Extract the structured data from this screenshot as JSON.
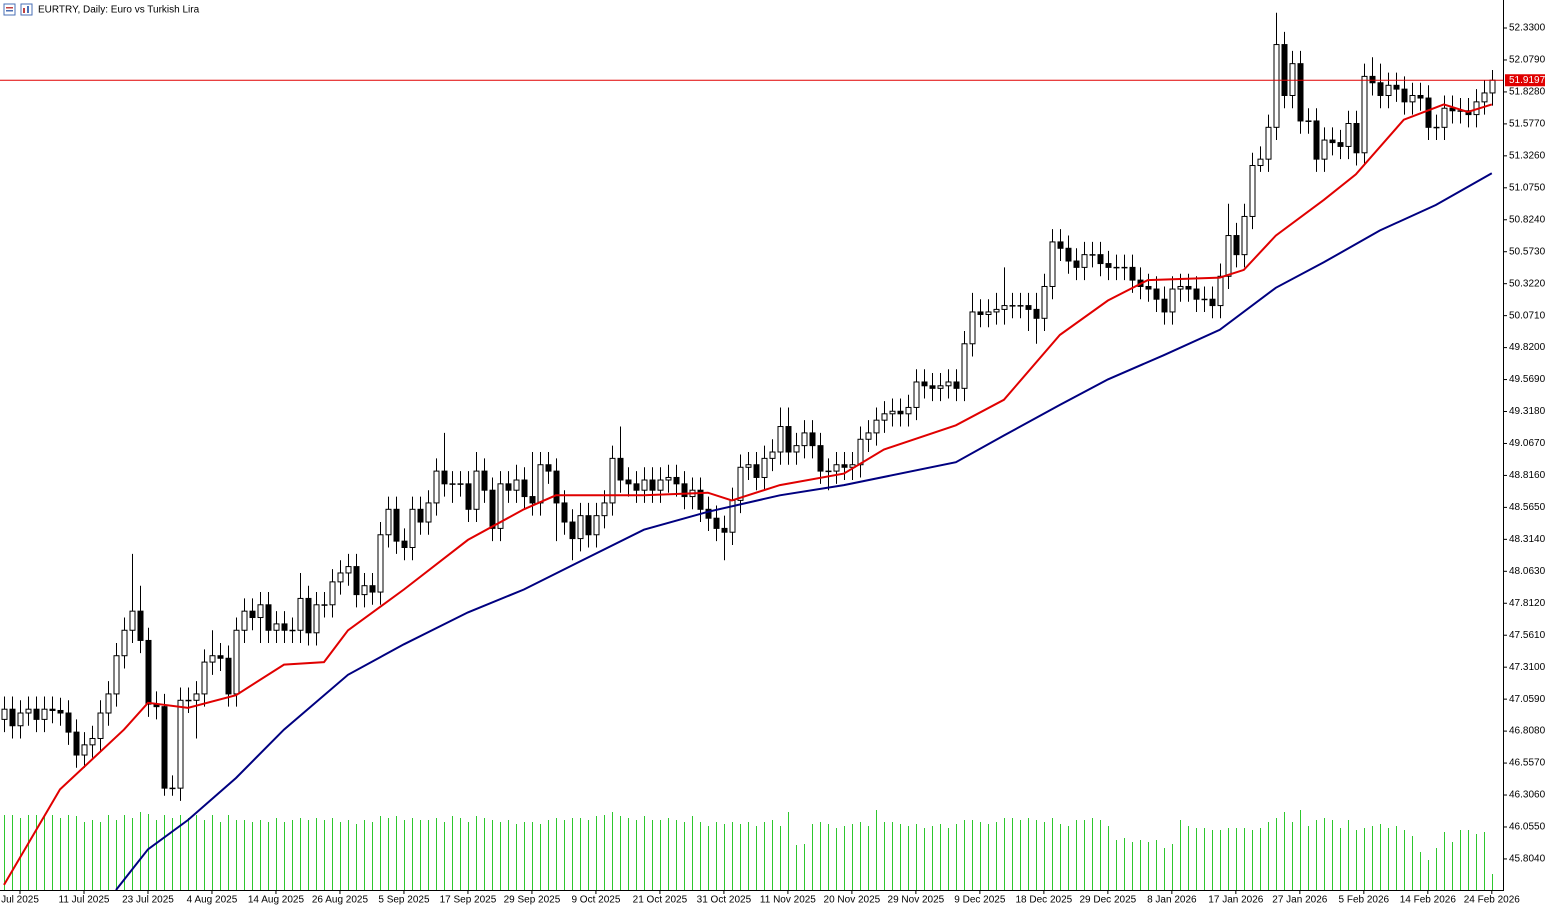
{
  "chart_data": {
    "type": "candlestick",
    "title": "EURTRY, Daily:  Euro vs Turkish Lira",
    "xlim": [
      -0.5,
      187.4
    ],
    "ylim": [
      45.56,
      52.55
    ],
    "xticks": [
      {
        "value": 2,
        "label": "Jul 2025"
      },
      {
        "value": 10,
        "label": "11 Jul 2025"
      },
      {
        "value": 18,
        "label": "23 Jul 2025"
      },
      {
        "value": 26,
        "label": "4 Aug 2025"
      },
      {
        "value": 34,
        "label": "14 Aug 2025"
      },
      {
        "value": 42,
        "label": "26 Aug 2025"
      },
      {
        "value": 50,
        "label": "5 Sep 2025"
      },
      {
        "value": 58,
        "label": "17 Sep 2025"
      },
      {
        "value": 66,
        "label": "29 Sep 2025"
      },
      {
        "value": 74,
        "label": "9 Oct 2025"
      },
      {
        "value": 82,
        "label": "21 Oct 2025"
      },
      {
        "value": 90,
        "label": "31 Oct 2025"
      },
      {
        "value": 98,
        "label": "11 Nov 2025"
      },
      {
        "value": 106,
        "label": "20 Nov 2025"
      },
      {
        "value": 114,
        "label": "29 Nov 2025"
      },
      {
        "value": 122,
        "label": "9 Dec 2025"
      },
      {
        "value": 130,
        "label": "18 Dec 2025"
      },
      {
        "value": 138,
        "label": "29 Dec 2025"
      },
      {
        "value": 146,
        "label": "8 Jan 2026"
      },
      {
        "value": 154,
        "label": "17 Jan 2026"
      },
      {
        "value": 162,
        "label": "27 Jan 2026"
      },
      {
        "value": 170,
        "label": "5 Feb 2026"
      },
      {
        "value": 178,
        "label": "14 Feb 2026"
      },
      {
        "value": 186,
        "label": "24 Feb 2026"
      }
    ],
    "yticks": [
      {
        "value": 52.33,
        "label": "52.3300"
      },
      {
        "value": 52.079,
        "label": "52.0790"
      },
      {
        "value": 51.828,
        "label": "51.8280"
      },
      {
        "value": 51.577,
        "label": "51.5770"
      },
      {
        "value": 51.326,
        "label": "51.3260"
      },
      {
        "value": 51.075,
        "label": "51.0750"
      },
      {
        "value": 50.824,
        "label": "50.8240"
      },
      {
        "value": 50.573,
        "label": "50.5730"
      },
      {
        "value": 50.322,
        "label": "50.3220"
      },
      {
        "value": 50.071,
        "label": "50.0710"
      },
      {
        "value": 49.82,
        "label": "49.8200"
      },
      {
        "value": 49.569,
        "label": "49.5690"
      },
      {
        "value": 49.318,
        "label": "49.3180"
      },
      {
        "value": 49.067,
        "label": "49.0670"
      },
      {
        "value": 48.816,
        "label": "48.8160"
      },
      {
        "value": 48.565,
        "label": "48.5650"
      },
      {
        "value": 48.314,
        "label": "48.3140"
      },
      {
        "value": 48.063,
        "label": "48.0630"
      },
      {
        "value": 47.812,
        "label": "47.8120"
      },
      {
        "value": 47.561,
        "label": "47.5610"
      },
      {
        "value": 47.31,
        "label": "47.3100"
      },
      {
        "value": 47.059,
        "label": "47.0590"
      },
      {
        "value": 46.808,
        "label": "46.8080"
      },
      {
        "value": 46.557,
        "label": "46.5570"
      },
      {
        "value": 46.306,
        "label": "46.3060"
      },
      {
        "value": 46.055,
        "label": "46.0550"
      },
      {
        "value": 45.804,
        "label": "45.8040"
      }
    ],
    "current_price": 51.9197,
    "current_price_color": "#e00000",
    "bull_color": "#ffffff",
    "bear_color": "#000000",
    "volume_color": "#2ec72e",
    "open": [
      46.9,
      46.98,
      46.85,
      46.95,
      46.98,
      46.9,
      46.98,
      46.97,
      46.95,
      46.8,
      46.62,
      46.7,
      46.75,
      46.95,
      47.1,
      47.4,
      47.6,
      47.75,
      47.52,
      47.02,
      47.0,
      46.36,
      46.36,
      47.05,
      47.05,
      47.1,
      47.35,
      47.4,
      47.38,
      47.1,
      47.6,
      47.75,
      47.7,
      47.8,
      47.6,
      47.65,
      47.6,
      47.6,
      47.85,
      47.58,
      47.8,
      47.8,
      47.98,
      48.05,
      48.1,
      47.88,
      47.95,
      47.9,
      48.35,
      48.55,
      48.3,
      48.25,
      48.55,
      48.45,
      48.6,
      48.85,
      48.75,
      48.75,
      48.75,
      48.55,
      48.85,
      48.7,
      48.4,
      48.75,
      48.7,
      48.78,
      48.65,
      48.6,
      48.9,
      48.85,
      48.6,
      48.45,
      48.32,
      48.5,
      48.35,
      48.5,
      48.6,
      48.95,
      48.78,
      48.75,
      48.7,
      48.78,
      48.7,
      48.78,
      48.8,
      48.75,
      48.65,
      48.7,
      48.55,
      48.48,
      48.4,
      48.37,
      48.62,
      48.88,
      48.9,
      48.8,
      48.95,
      49.0,
      49.2,
      49.0,
      49.05,
      49.15,
      49.05,
      48.85,
      48.85,
      48.9,
      48.88,
      48.9,
      49.1,
      49.15,
      49.25,
      49.3,
      49.32,
      49.3,
      49.35,
      49.55,
      49.52,
      49.5,
      49.52,
      49.55,
      49.5,
      49.85,
      50.1,
      50.08,
      50.1,
      50.12,
      50.15,
      50.15,
      50.15,
      50.12,
      50.05,
      50.3,
      50.65,
      50.6,
      50.5,
      50.45,
      50.55,
      50.55,
      50.48,
      50.45,
      50.45,
      50.45,
      50.35,
      50.3,
      50.28,
      50.2,
      50.1,
      50.28,
      50.3,
      50.28,
      50.2,
      50.2,
      50.15,
      50.38,
      50.7,
      50.55,
      50.85,
      51.25,
      51.3,
      51.55,
      52.2,
      51.8,
      52.05,
      51.6,
      51.6,
      51.3,
      51.45,
      51.43,
      51.4,
      51.58,
      51.35,
      51.95,
      51.9,
      51.8,
      51.88,
      51.85,
      51.75,
      51.8,
      51.78,
      51.55,
      51.55,
      51.7,
      51.68,
      51.68,
      51.65,
      51.75,
      51.82
    ],
    "high": [
      47.08,
      47.08,
      47.05,
      47.08,
      47.08,
      47.08,
      47.08,
      47.07,
      47.05,
      46.9,
      46.8,
      46.85,
      47.05,
      47.2,
      47.5,
      47.7,
      48.2,
      47.95,
      47.62,
      47.12,
      47.1,
      46.46,
      47.15,
      47.15,
      47.2,
      47.45,
      47.6,
      47.5,
      47.48,
      47.7,
      47.85,
      47.85,
      47.9,
      47.9,
      47.75,
      47.75,
      47.7,
      48.05,
      47.95,
      47.9,
      47.9,
      48.08,
      48.15,
      48.2,
      48.2,
      48.05,
      48.05,
      48.45,
      48.65,
      48.65,
      48.4,
      48.65,
      48.65,
      48.7,
      48.95,
      49.15,
      48.85,
      48.85,
      48.85,
      49.0,
      48.95,
      48.8,
      48.85,
      48.85,
      48.9,
      48.88,
      49.0,
      49.0,
      49.0,
      48.95,
      48.7,
      48.55,
      48.6,
      48.6,
      48.6,
      48.7,
      49.05,
      49.2,
      48.88,
      48.85,
      48.88,
      48.88,
      48.88,
      48.9,
      48.9,
      48.85,
      48.8,
      48.8,
      48.65,
      48.58,
      48.5,
      48.72,
      48.98,
      49.0,
      49.0,
      49.05,
      49.1,
      49.35,
      49.35,
      49.15,
      49.25,
      49.25,
      49.15,
      48.95,
      49.0,
      49.0,
      49.0,
      49.2,
      49.25,
      49.35,
      49.4,
      49.42,
      49.42,
      49.45,
      49.65,
      49.65,
      49.62,
      49.62,
      49.65,
      49.65,
      49.95,
      50.25,
      50.2,
      50.2,
      50.25,
      50.45,
      50.25,
      50.25,
      50.25,
      50.25,
      50.4,
      50.75,
      50.75,
      50.7,
      50.6,
      50.65,
      50.65,
      50.65,
      50.58,
      50.55,
      50.55,
      50.55,
      50.45,
      50.4,
      50.38,
      50.3,
      50.38,
      50.4,
      50.4,
      50.38,
      50.3,
      50.3,
      50.48,
      50.95,
      50.8,
      50.95,
      51.35,
      51.4,
      51.65,
      52.45,
      52.3,
      52.15,
      52.15,
      51.7,
      51.7,
      51.55,
      51.55,
      51.53,
      51.68,
      51.68,
      52.05,
      52.1,
      52.05,
      51.98,
      51.98,
      51.95,
      51.9,
      51.9,
      51.88,
      51.65,
      51.8,
      51.8,
      51.78,
      51.78,
      51.85,
      51.92,
      52.0
    ],
    "low": [
      46.8,
      46.75,
      46.75,
      46.85,
      46.8,
      46.8,
      46.87,
      46.85,
      46.7,
      46.52,
      46.52,
      46.6,
      46.65,
      46.85,
      47.0,
      47.3,
      47.5,
      47.42,
      46.92,
      46.9,
      46.3,
      46.3,
      46.26,
      46.95,
      46.75,
      47.0,
      47.25,
      47.28,
      47.0,
      47.0,
      47.5,
      47.6,
      47.5,
      47.5,
      47.5,
      47.5,
      47.5,
      47.5,
      47.48,
      47.48,
      47.7,
      47.7,
      47.88,
      47.95,
      47.78,
      47.78,
      47.8,
      47.8,
      48.25,
      48.2,
      48.15,
      48.15,
      48.35,
      48.35,
      48.5,
      48.65,
      48.6,
      48.65,
      48.45,
      48.45,
      48.6,
      48.3,
      48.3,
      48.6,
      48.6,
      48.55,
      48.5,
      48.5,
      48.75,
      48.3,
      48.35,
      48.15,
      48.22,
      48.25,
      48.25,
      48.4,
      48.5,
      48.68,
      48.65,
      48.6,
      48.6,
      48.6,
      48.6,
      48.68,
      48.65,
      48.55,
      48.55,
      48.45,
      48.38,
      48.3,
      48.15,
      48.27,
      48.52,
      48.78,
      48.7,
      48.7,
      48.85,
      48.9,
      48.9,
      48.9,
      48.95,
      48.95,
      48.75,
      48.7,
      48.75,
      48.78,
      48.78,
      48.8,
      49.0,
      49.05,
      49.15,
      49.2,
      49.2,
      49.2,
      49.25,
      49.42,
      49.4,
      49.4,
      49.42,
      49.4,
      49.4,
      49.75,
      49.98,
      49.98,
      50.0,
      50.0,
      50.05,
      50.05,
      49.95,
      49.85,
      49.95,
      50.2,
      50.5,
      50.4,
      50.35,
      50.35,
      50.45,
      50.38,
      50.35,
      50.35,
      50.35,
      50.25,
      50.2,
      50.18,
      50.1,
      50.0,
      50.0,
      50.18,
      50.18,
      50.1,
      50.1,
      50.05,
      50.05,
      50.28,
      50.45,
      50.45,
      50.75,
      51.2,
      51.2,
      51.45,
      51.7,
      51.7,
      51.5,
      51.5,
      51.2,
      51.2,
      51.33,
      51.3,
      51.3,
      51.25,
      51.25,
      51.8,
      51.7,
      51.7,
      51.75,
      51.65,
      51.65,
      51.68,
      51.45,
      51.45,
      51.45,
      51.58,
      51.58,
      51.55,
      51.55,
      51.65,
      51.72
    ],
    "close": [
      46.98,
      46.85,
      46.95,
      46.98,
      46.9,
      46.98,
      46.97,
      46.95,
      46.8,
      46.62,
      46.7,
      46.75,
      46.95,
      47.1,
      47.4,
      47.6,
      47.75,
      47.52,
      47.02,
      47.0,
      46.36,
      46.36,
      47.05,
      47.05,
      47.1,
      47.35,
      47.4,
      47.38,
      47.1,
      47.6,
      47.75,
      47.7,
      47.8,
      47.6,
      47.65,
      47.6,
      47.6,
      47.85,
      47.58,
      47.8,
      47.8,
      47.98,
      48.05,
      48.1,
      47.88,
      47.95,
      47.9,
      48.35,
      48.55,
      48.3,
      48.25,
      48.55,
      48.45,
      48.6,
      48.85,
      48.75,
      48.75,
      48.75,
      48.55,
      48.85,
      48.7,
      48.4,
      48.75,
      48.7,
      48.78,
      48.65,
      48.6,
      48.9,
      48.85,
      48.6,
      48.45,
      48.32,
      48.5,
      48.35,
      48.5,
      48.6,
      48.95,
      48.78,
      48.75,
      48.7,
      48.78,
      48.7,
      48.78,
      48.8,
      48.75,
      48.65,
      48.7,
      48.55,
      48.48,
      48.4,
      48.37,
      48.62,
      48.88,
      48.9,
      48.8,
      48.95,
      49.0,
      49.2,
      49.0,
      49.05,
      49.15,
      49.05,
      48.85,
      48.85,
      48.9,
      48.88,
      48.9,
      49.1,
      49.15,
      49.25,
      49.3,
      49.32,
      49.3,
      49.35,
      49.55,
      49.52,
      49.5,
      49.52,
      49.55,
      49.5,
      49.85,
      50.1,
      50.08,
      50.1,
      50.12,
      50.15,
      50.15,
      50.15,
      50.12,
      50.05,
      50.3,
      50.65,
      50.6,
      50.5,
      50.45,
      50.55,
      50.55,
      50.48,
      50.45,
      50.45,
      50.45,
      50.35,
      50.3,
      50.28,
      50.2,
      50.1,
      50.28,
      50.3,
      50.28,
      50.2,
      50.2,
      50.15,
      50.38,
      50.7,
      50.55,
      50.85,
      51.25,
      51.3,
      51.55,
      52.2,
      51.8,
      52.05,
      51.6,
      51.6,
      51.3,
      51.45,
      51.43,
      51.4,
      51.58,
      51.35,
      51.95,
      51.9,
      51.8,
      51.88,
      51.85,
      51.75,
      51.8,
      51.78,
      51.55,
      51.55,
      51.7,
      51.68,
      51.68,
      51.65,
      51.75,
      51.82,
      51.92
    ],
    "volume": [
      75,
      75,
      72,
      75,
      75,
      73,
      75,
      72,
      75,
      74,
      68,
      70,
      68,
      75,
      70,
      75,
      72,
      78,
      76,
      70,
      75,
      72,
      75,
      72,
      75,
      70,
      75,
      68,
      75,
      70,
      70,
      68,
      70,
      68,
      72,
      68,
      70,
      72,
      70,
      72,
      70,
      72,
      68,
      70,
      66,
      70,
      68,
      74,
      72,
      74,
      70,
      72,
      70,
      70,
      72,
      68,
      74,
      72,
      68,
      74,
      72,
      70,
      68,
      70,
      66,
      68,
      68,
      66,
      70,
      72,
      70,
      72,
      72,
      70,
      74,
      75,
      78,
      74,
      72,
      70,
      74,
      70,
      70,
      72,
      70,
      68,
      74,
      68,
      64,
      68,
      66,
      68,
      66,
      68,
      64,
      68,
      70,
      64,
      78,
      45,
      46,
      66,
      68,
      66,
      62,
      64,
      66,
      68,
      64,
      80,
      68,
      68,
      66,
      64,
      66,
      62,
      64,
      66,
      62,
      66,
      70,
      70,
      68,
      66,
      68,
      72,
      72,
      70,
      72,
      70,
      68,
      72,
      66,
      64,
      70,
      70,
      72,
      70,
      64,
      50,
      52,
      48,
      50,
      48,
      50,
      42,
      46,
      70,
      64,
      62,
      62,
      60,
      60,
      62,
      62,
      62,
      60,
      62,
      68,
      72,
      78,
      68,
      80,
      64,
      70,
      72,
      70,
      62,
      70,
      60,
      62,
      64,
      66,
      62,
      64,
      60,
      54,
      38,
      30,
      42,
      58,
      48,
      60,
      60,
      56,
      58,
      16
    ],
    "series": [
      {
        "color": "#e00000",
        "x": [
          0,
          7,
          15,
          18,
          23,
          29,
          35,
          40,
          43,
          50,
          58,
          65,
          69,
          80,
          88,
          91,
          97,
          105,
          110,
          119,
          125,
          132,
          138,
          143,
          152,
          155,
          159,
          165,
          169,
          175,
          180,
          183,
          186
        ],
        "values": [
          45.6,
          46.35,
          46.82,
          47.03,
          46.99,
          47.09,
          47.33,
          47.35,
          47.6,
          47.92,
          48.31,
          48.55,
          48.66,
          48.66,
          48.68,
          48.62,
          48.74,
          48.83,
          49.02,
          49.21,
          49.41,
          49.92,
          50.19,
          50.35,
          50.37,
          50.43,
          50.7,
          50.98,
          51.18,
          51.61,
          51.73,
          51.67,
          51.73
        ]
      },
      {
        "color": "#000080",
        "x": [
          14,
          18,
          23,
          29,
          35,
          43,
          50,
          58,
          65,
          72,
          80,
          88,
          97,
          105,
          119,
          125,
          132,
          138,
          145,
          152,
          159,
          165,
          172,
          179,
          186
        ],
        "values": [
          45.56,
          45.88,
          46.11,
          46.44,
          46.82,
          47.25,
          47.49,
          47.74,
          47.92,
          48.14,
          48.39,
          48.53,
          48.66,
          48.74,
          48.92,
          49.13,
          49.37,
          49.57,
          49.76,
          49.96,
          50.29,
          50.49,
          50.74,
          50.94,
          51.19
        ]
      }
    ]
  }
}
